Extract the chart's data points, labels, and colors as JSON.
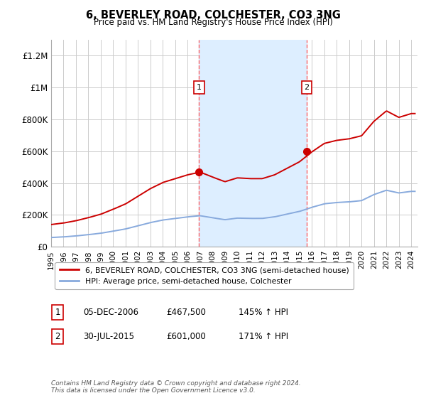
{
  "title": "6, BEVERLEY ROAD, COLCHESTER, CO3 3NG",
  "subtitle": "Price paid vs. HM Land Registry's House Price Index (HPI)",
  "ylim": [
    0,
    1300000
  ],
  "yticks": [
    0,
    200000,
    400000,
    600000,
    800000,
    1000000,
    1200000
  ],
  "ytick_labels": [
    "£0",
    "£200K",
    "£400K",
    "£600K",
    "£800K",
    "£1M",
    "£1.2M"
  ],
  "background_color": "#ffffff",
  "plot_bg_color": "#ffffff",
  "grid_color": "#cccccc",
  "sale1": {
    "date_num": 2006.92,
    "price": 467500,
    "label": "1",
    "date_str": "05-DEC-2006",
    "pct": "145% ↑ HPI"
  },
  "sale2": {
    "date_num": 2015.58,
    "price": 601000,
    "label": "2",
    "date_str": "30-JUL-2015",
    "pct": "171% ↑ HPI"
  },
  "vspan_color": "#ddeeff",
  "vline_color": "#ff6666",
  "marker_color": "#cc0000",
  "hpi_color": "#88aadd",
  "sale_line_color": "#cc0000",
  "legend_label_sale": "6, BEVERLEY ROAD, COLCHESTER, CO3 3NG (semi-detached house)",
  "legend_label_hpi": "HPI: Average price, semi-detached house, Colchester",
  "footer": "Contains HM Land Registry data © Crown copyright and database right 2024.\nThis data is licensed under the Open Government Licence v3.0.",
  "xmin": 1995,
  "xmax": 2024.5,
  "hpi_years": [
    1995,
    1996,
    1997,
    1998,
    1999,
    2000,
    2001,
    2002,
    2003,
    2004,
    2005,
    2006,
    2007,
    2008,
    2009,
    2010,
    2011,
    2012,
    2013,
    2014,
    2015,
    2016,
    2017,
    2018,
    2019,
    2020,
    2021,
    2022,
    2023,
    2024
  ],
  "hpi_values": [
    58000,
    62000,
    68000,
    76000,
    85000,
    98000,
    112000,
    132000,
    152000,
    168000,
    178000,
    188000,
    195000,
    182000,
    170000,
    180000,
    178000,
    178000,
    188000,
    205000,
    222000,
    248000,
    270000,
    278000,
    282000,
    290000,
    328000,
    355000,
    338000,
    348000
  ],
  "sale1_price_str": "£467,500",
  "sale2_price_str": "£601,000"
}
